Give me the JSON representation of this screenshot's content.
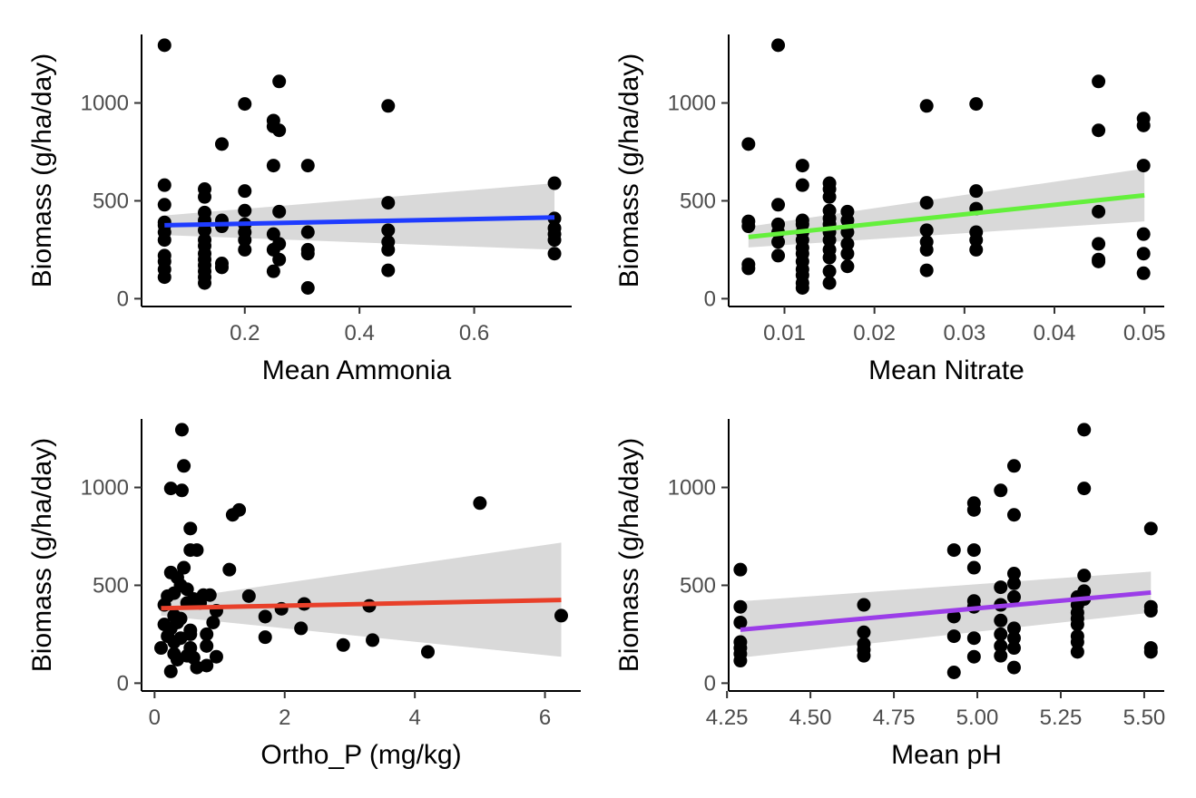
{
  "chart_data": [
    {
      "type": "scatter",
      "xlabel": "Mean Ammonia",
      "ylabel": "Biomass (g/ha/day)",
      "xlim": [
        0.02,
        0.77
      ],
      "ylim": [
        -40,
        1350
      ],
      "x_ticks": [
        0.2,
        0.4,
        0.6
      ],
      "x_tick_labels": [
        "0.2",
        "0.4",
        "0.6"
      ],
      "y_ticks": [
        0,
        500,
        1000
      ],
      "y_tick_labels": [
        "0",
        "500",
        "1000"
      ],
      "grid": false,
      "legend": "none",
      "fit": {
        "color": "#1f3cff",
        "x": [
          0.06,
          0.74
        ],
        "y": [
          375,
          415
        ],
        "ci_lower": [
          325,
          250
        ],
        "ci_upper": [
          425,
          590
        ]
      },
      "points": [
        [
          0.06,
          1295
        ],
        [
          0.06,
          580
        ],
        [
          0.06,
          480
        ],
        [
          0.06,
          390
        ],
        [
          0.06,
          375
        ],
        [
          0.06,
          340
        ],
        [
          0.06,
          300
        ],
        [
          0.06,
          220
        ],
        [
          0.06,
          190
        ],
        [
          0.06,
          150
        ],
        [
          0.06,
          110
        ],
        [
          0.13,
          560
        ],
        [
          0.13,
          520
        ],
        [
          0.13,
          440
        ],
        [
          0.13,
          400
        ],
        [
          0.13,
          350
        ],
        [
          0.13,
          300
        ],
        [
          0.13,
          270
        ],
        [
          0.13,
          230
        ],
        [
          0.13,
          200
        ],
        [
          0.13,
          170
        ],
        [
          0.13,
          140
        ],
        [
          0.13,
          110
        ],
        [
          0.13,
          80
        ],
        [
          0.16,
          790
        ],
        [
          0.16,
          400
        ],
        [
          0.16,
          370
        ],
        [
          0.16,
          180
        ],
        [
          0.16,
          160
        ],
        [
          0.2,
          995
        ],
        [
          0.2,
          550
        ],
        [
          0.2,
          450
        ],
        [
          0.2,
          380
        ],
        [
          0.2,
          340
        ],
        [
          0.2,
          300
        ],
        [
          0.2,
          250
        ],
        [
          0.25,
          910
        ],
        [
          0.25,
          880
        ],
        [
          0.25,
          680
        ],
        [
          0.25,
          330
        ],
        [
          0.25,
          250
        ],
        [
          0.25,
          140
        ],
        [
          0.26,
          1110
        ],
        [
          0.26,
          860
        ],
        [
          0.26,
          445
        ],
        [
          0.26,
          280
        ],
        [
          0.26,
          200
        ],
        [
          0.31,
          680
        ],
        [
          0.31,
          340
        ],
        [
          0.31,
          250
        ],
        [
          0.31,
          230
        ],
        [
          0.31,
          55
        ],
        [
          0.45,
          985
        ],
        [
          0.45,
          490
        ],
        [
          0.45,
          350
        ],
        [
          0.45,
          290
        ],
        [
          0.45,
          250
        ],
        [
          0.45,
          145
        ],
        [
          0.74,
          590
        ],
        [
          0.74,
          410
        ],
        [
          0.74,
          360
        ],
        [
          0.74,
          330
        ],
        [
          0.74,
          300
        ],
        [
          0.74,
          230
        ]
      ]
    },
    {
      "type": "scatter",
      "xlabel": "Mean Nitrate",
      "ylabel": "Biomass (g/ha/day)",
      "xlim": [
        0.0038,
        0.0522
      ],
      "ylim": [
        -40,
        1350
      ],
      "x_ticks": [
        0.01,
        0.02,
        0.03,
        0.04,
        0.05
      ],
      "x_tick_labels": [
        "0.01",
        "0.02",
        "0.03",
        "0.04",
        "0.05"
      ],
      "y_ticks": [
        0,
        500,
        1000
      ],
      "y_tick_labels": [
        "0",
        "500",
        "1000"
      ],
      "grid": false,
      "legend": "none",
      "fit": {
        "color": "#64f03c",
        "x": [
          0.006,
          0.05
        ],
        "y": [
          315,
          528
        ],
        "ci_lower": [
          262,
          395
        ],
        "ci_upper": [
          368,
          665
        ]
      },
      "points": [
        [
          0.006,
          790
        ],
        [
          0.006,
          395
        ],
        [
          0.006,
          370
        ],
        [
          0.006,
          175
        ],
        [
          0.006,
          155
        ],
        [
          0.0093,
          1295
        ],
        [
          0.0093,
          480
        ],
        [
          0.0093,
          380
        ],
        [
          0.0093,
          340
        ],
        [
          0.0093,
          290
        ],
        [
          0.0093,
          220
        ],
        [
          0.012,
          680
        ],
        [
          0.012,
          580
        ],
        [
          0.012,
          400
        ],
        [
          0.012,
          380
        ],
        [
          0.012,
          340
        ],
        [
          0.012,
          300
        ],
        [
          0.012,
          260
        ],
        [
          0.012,
          230
        ],
        [
          0.012,
          190
        ],
        [
          0.012,
          150
        ],
        [
          0.012,
          120
        ],
        [
          0.012,
          80
        ],
        [
          0.012,
          55
        ],
        [
          0.015,
          590
        ],
        [
          0.015,
          560
        ],
        [
          0.015,
          520
        ],
        [
          0.015,
          450
        ],
        [
          0.015,
          410
        ],
        [
          0.015,
          380
        ],
        [
          0.015,
          340
        ],
        [
          0.015,
          300
        ],
        [
          0.015,
          250
        ],
        [
          0.015,
          210
        ],
        [
          0.015,
          140
        ],
        [
          0.015,
          80
        ],
        [
          0.017,
          445
        ],
        [
          0.017,
          400
        ],
        [
          0.017,
          340
        ],
        [
          0.017,
          280
        ],
        [
          0.017,
          230
        ],
        [
          0.017,
          165
        ],
        [
          0.0258,
          985
        ],
        [
          0.0258,
          490
        ],
        [
          0.0258,
          350
        ],
        [
          0.0258,
          290
        ],
        [
          0.0258,
          250
        ],
        [
          0.0258,
          145
        ],
        [
          0.0313,
          995
        ],
        [
          0.0313,
          550
        ],
        [
          0.0313,
          460
        ],
        [
          0.0313,
          340
        ],
        [
          0.0313,
          300
        ],
        [
          0.0313,
          250
        ],
        [
          0.0449,
          1110
        ],
        [
          0.0449,
          860
        ],
        [
          0.0449,
          445
        ],
        [
          0.0449,
          280
        ],
        [
          0.0449,
          200
        ],
        [
          0.0449,
          190
        ],
        [
          0.0499,
          920
        ],
        [
          0.0499,
          885
        ],
        [
          0.0499,
          680
        ],
        [
          0.0499,
          330
        ],
        [
          0.0499,
          230
        ],
        [
          0.0499,
          130
        ]
      ]
    },
    {
      "type": "scatter",
      "xlabel": "Ortho_P (mg/kg)",
      "ylabel": "Biomass (g/ha/day)",
      "xlim": [
        -0.2,
        6.55
      ],
      "ylim": [
        -40,
        1350
      ],
      "x_ticks": [
        0,
        2,
        4,
        6
      ],
      "x_tick_labels": [
        "0",
        "2",
        "4",
        "6"
      ],
      "y_ticks": [
        0,
        500,
        1000
      ],
      "y_tick_labels": [
        "0",
        "500",
        "1000"
      ],
      "grid": false,
      "legend": "none",
      "fit": {
        "color": "#e8402a",
        "x": [
          0.1,
          6.25
        ],
        "y": [
          383,
          425
        ],
        "ci_lower": [
          345,
          135
        ],
        "ci_upper": [
          420,
          718
        ]
      },
      "points": [
        [
          0.42,
          1295
        ],
        [
          0.45,
          1110
        ],
        [
          0.25,
          995
        ],
        [
          0.42,
          985
        ],
        [
          1.3,
          885
        ],
        [
          1.2,
          860
        ],
        [
          0.55,
          790
        ],
        [
          0.55,
          680
        ],
        [
          0.65,
          680
        ],
        [
          0.45,
          590
        ],
        [
          1.15,
          580
        ],
        [
          0.25,
          565
        ],
        [
          0.35,
          540
        ],
        [
          0.4,
          500
        ],
        [
          0.5,
          480
        ],
        [
          0.3,
          460
        ],
        [
          0.2,
          445
        ],
        [
          0.6,
          430
        ],
        [
          0.75,
          450
        ],
        [
          0.85,
          450
        ],
        [
          1.45,
          445
        ],
        [
          0.15,
          400
        ],
        [
          0.5,
          410
        ],
        [
          0.7,
          410
        ],
        [
          2.3,
          405
        ],
        [
          3.3,
          395
        ],
        [
          1.95,
          380
        ],
        [
          0.95,
          370
        ],
        [
          0.3,
          345
        ],
        [
          0.4,
          330
        ],
        [
          1.7,
          340
        ],
        [
          0.15,
          300
        ],
        [
          0.35,
          310
        ],
        [
          0.9,
          310
        ],
        [
          0.25,
          280
        ],
        [
          0.55,
          270
        ],
        [
          2.25,
          280
        ],
        [
          0.1,
          180
        ],
        [
          0.2,
          240
        ],
        [
          0.3,
          210
        ],
        [
          0.4,
          230
        ],
        [
          0.55,
          250
        ],
        [
          0.8,
          250
        ],
        [
          1.7,
          235
        ],
        [
          3.35,
          220
        ],
        [
          2.9,
          195
        ],
        [
          0.3,
          150
        ],
        [
          0.5,
          140
        ],
        [
          0.55,
          180
        ],
        [
          0.8,
          190
        ],
        [
          0.95,
          135
        ],
        [
          4.2,
          160
        ],
        [
          0.35,
          120
        ],
        [
          0.6,
          130
        ],
        [
          0.25,
          60
        ],
        [
          0.65,
          80
        ],
        [
          0.8,
          90
        ],
        [
          5.0,
          920
        ],
        [
          6.25,
          345
        ]
      ]
    },
    {
      "type": "scatter",
      "xlabel": "Mean pH",
      "ylabel": "Biomass (g/ha/day)",
      "xlim": [
        4.255,
        5.56
      ],
      "ylim": [
        -40,
        1350
      ],
      "x_ticks": [
        4.25,
        4.5,
        4.75,
        5.0,
        5.25,
        5.5
      ],
      "x_tick_labels": [
        "4.25",
        "4.50",
        "4.75",
        "5.00",
        "5.25",
        "5.50"
      ],
      "y_ticks": [
        0,
        500,
        1000
      ],
      "y_tick_labels": [
        "0",
        "500",
        "1000"
      ],
      "grid": false,
      "legend": "none",
      "fit": {
        "color": "#9b3de8",
        "x": [
          4.29,
          5.52
        ],
        "y": [
          273,
          463
        ],
        "ci_lower": [
          130,
          360
        ],
        "ci_upper": [
          418,
          570
        ]
      },
      "points": [
        [
          4.29,
          580
        ],
        [
          4.29,
          390
        ],
        [
          4.29,
          310
        ],
        [
          4.29,
          210
        ],
        [
          4.29,
          180
        ],
        [
          4.29,
          150
        ],
        [
          4.29,
          115
        ],
        [
          4.66,
          400
        ],
        [
          4.66,
          260
        ],
        [
          4.66,
          200
        ],
        [
          4.66,
          170
        ],
        [
          4.66,
          140
        ],
        [
          4.93,
          680
        ],
        [
          4.93,
          340
        ],
        [
          4.93,
          240
        ],
        [
          4.93,
          55
        ],
        [
          4.99,
          920
        ],
        [
          4.99,
          885
        ],
        [
          4.99,
          680
        ],
        [
          4.99,
          590
        ],
        [
          4.99,
          420
        ],
        [
          4.99,
          390
        ],
        [
          4.99,
          230
        ],
        [
          4.99,
          135
        ],
        [
          5.07,
          985
        ],
        [
          5.07,
          490
        ],
        [
          5.07,
          400
        ],
        [
          5.07,
          320
        ],
        [
          5.07,
          250
        ],
        [
          5.07,
          190
        ],
        [
          5.07,
          140
        ],
        [
          5.11,
          1110
        ],
        [
          5.11,
          860
        ],
        [
          5.11,
          560
        ],
        [
          5.11,
          510
        ],
        [
          5.11,
          440
        ],
        [
          5.11,
          280
        ],
        [
          5.11,
          230
        ],
        [
          5.11,
          180
        ],
        [
          5.11,
          80
        ],
        [
          5.3,
          440
        ],
        [
          5.3,
          400
        ],
        [
          5.3,
          360
        ],
        [
          5.3,
          330
        ],
        [
          5.3,
          300
        ],
        [
          5.3,
          240
        ],
        [
          5.3,
          210
        ],
        [
          5.3,
          160
        ],
        [
          5.32,
          1295
        ],
        [
          5.32,
          995
        ],
        [
          5.32,
          550
        ],
        [
          5.32,
          470
        ],
        [
          5.32,
          430
        ],
        [
          5.52,
          790
        ],
        [
          5.52,
          390
        ],
        [
          5.52,
          370
        ],
        [
          5.52,
          180
        ],
        [
          5.52,
          160
        ]
      ]
    }
  ]
}
